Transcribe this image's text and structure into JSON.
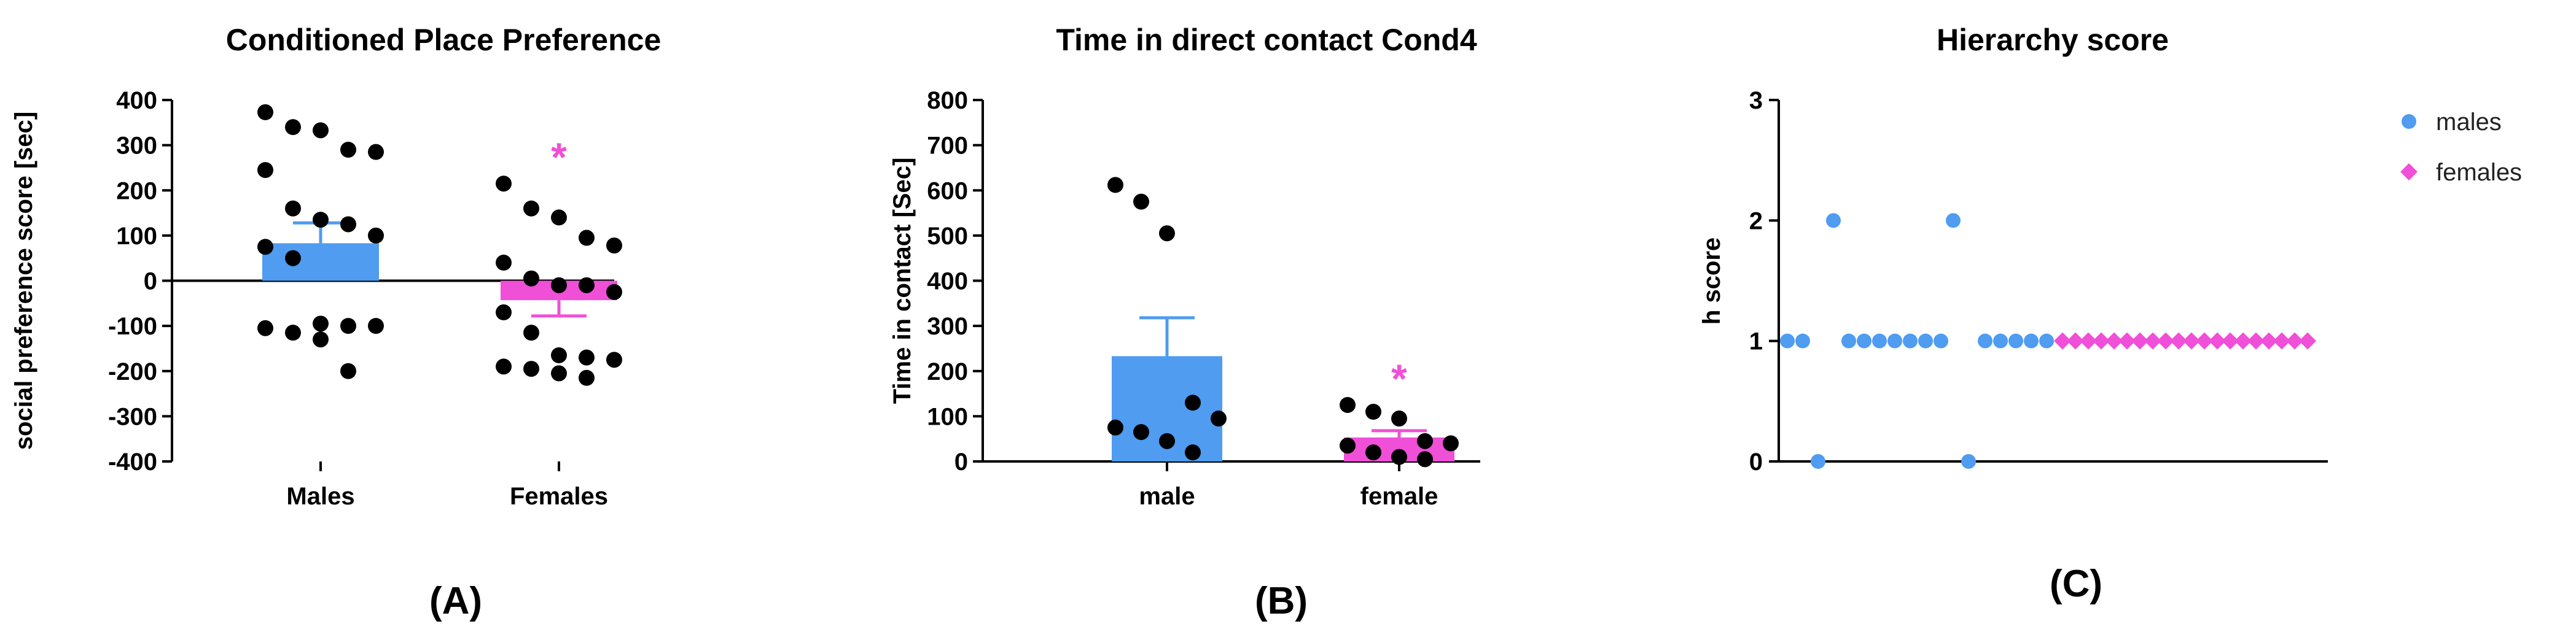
{
  "colors": {
    "male": "#4f9cf0",
    "female": "#f04fd8",
    "dot": "#000000",
    "axis": "#000000"
  },
  "chart_data": [
    {
      "type": "bar",
      "panel_label": "(A)",
      "title": "Conditioned Place Preference",
      "ylabel": "social preference score [sec]",
      "ylim": [
        -400,
        400
      ],
      "yticks": [
        -400,
        -300,
        -200,
        -100,
        0,
        100,
        200,
        300,
        400
      ],
      "categories": [
        "Males",
        "Females"
      ],
      "values": [
        83,
        -43
      ],
      "sem": [
        45,
        35
      ],
      "significance": [
        "",
        "*"
      ],
      "points": [
        [
          373,
          340,
          333,
          290,
          285,
          245,
          160,
          135,
          125,
          100,
          75,
          50,
          -95,
          -100,
          -100,
          -105,
          -115,
          -130,
          -200
        ],
        [
          215,
          160,
          140,
          95,
          78,
          40,
          5,
          -10,
          -10,
          -25,
          -70,
          -115,
          -165,
          -170,
          -175,
          -190,
          -195,
          -205,
          -215
        ]
      ]
    },
    {
      "type": "bar",
      "panel_label": "(B)",
      "title": "Time in direct contact Cond4",
      "ylabel": "Time in contact [Sec]",
      "ylim": [
        0,
        800
      ],
      "yticks": [
        0,
        100,
        200,
        300,
        400,
        500,
        600,
        700,
        800
      ],
      "categories": [
        "male",
        "female"
      ],
      "values": [
        233,
        53
      ],
      "sem": [
        85,
        15
      ],
      "significance": [
        "",
        "*"
      ],
      "points": [
        [
          612,
          575,
          505,
          130,
          95,
          75,
          65,
          45,
          20
        ],
        [
          125,
          110,
          95,
          45,
          40,
          35,
          20,
          10,
          5
        ]
      ]
    },
    {
      "type": "scatter",
      "panel_label": "(C)",
      "title": "Hierarchy score",
      "ylabel": "h score",
      "ylim": [
        0,
        3
      ],
      "yticks": [
        0,
        1,
        2,
        3
      ],
      "legend": "right",
      "series": [
        {
          "name": "males",
          "marker": "circle",
          "values": [
            1,
            1,
            0,
            2,
            1,
            1,
            1,
            1,
            1,
            1,
            1,
            2,
            0,
            1,
            1,
            1,
            1,
            1
          ]
        },
        {
          "name": "females",
          "marker": "diamond",
          "values": [
            1,
            1,
            1,
            1,
            1,
            1,
            1,
            1,
            1,
            1,
            1,
            1,
            1,
            1,
            1,
            1,
            1,
            1,
            1,
            1
          ]
        }
      ]
    }
  ]
}
